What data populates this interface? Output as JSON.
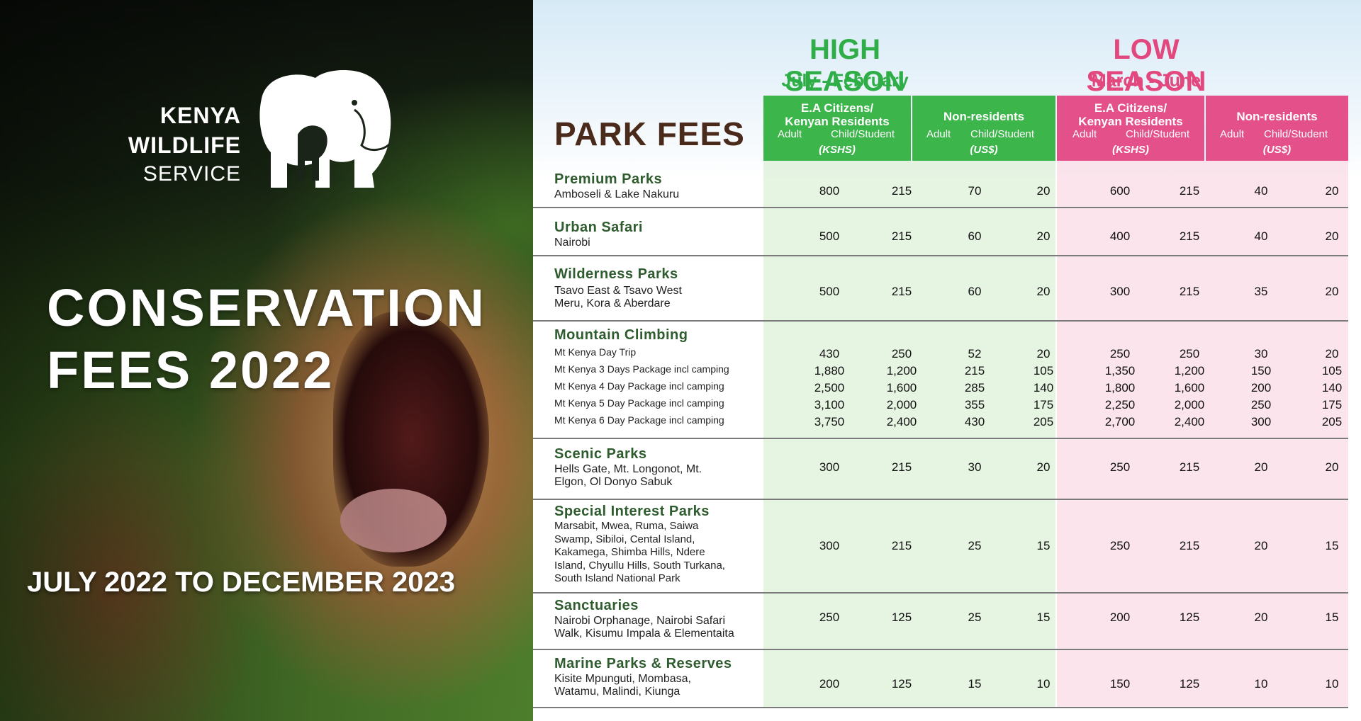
{
  "left": {
    "logo": {
      "line1": "KENYA",
      "line2": "WILDLIFE",
      "line3": "SERVICE"
    },
    "title_line1": "CONSERVATION",
    "title_line2": "FEES 2022",
    "period": "JULY 2022 TO DECEMBER 2023"
  },
  "right": {
    "park_fees": "PARK FEES",
    "high": {
      "title": "HIGH SEASON",
      "months": "July - February"
    },
    "low": {
      "title": "LOW SEASON",
      "months": "March - June"
    },
    "headers": {
      "citizens": "E.A Citizens/\nKenyan Residents",
      "nonres": "Non-residents",
      "adult": "Adult",
      "child": "Child/Student",
      "kshs": "(KSHS)",
      "uss": "(US$)"
    },
    "rows": [
      {
        "category": "Premium Parks",
        "sub": "Amboseli & Lake Nakuru",
        "values": [
          "800",
          "215",
          "70",
          "20",
          "600",
          "215",
          "40",
          "20"
        ]
      },
      {
        "category": "Urban Safari",
        "sub": "Nairobi",
        "values": [
          "500",
          "215",
          "60",
          "20",
          "400",
          "215",
          "40",
          "20"
        ]
      },
      {
        "category": "Wilderness Parks",
        "sub": "Tsavo East & Tsavo West\nMeru, Kora & Aberdare",
        "values": [
          "500",
          "215",
          "60",
          "20",
          "300",
          "215",
          "35",
          "20"
        ]
      },
      {
        "category": "Scenic Parks",
        "sub": "Hells Gate, Mt. Longonot, Mt.\nElgon, Ol Donyo Sabuk",
        "values": [
          "300",
          "215",
          "30",
          "20",
          "250",
          "215",
          "20",
          "20"
        ]
      },
      {
        "category": "Special Interest Parks",
        "sub": "Marsabit, Mwea, Ruma, Saiwa\nSwamp, Sibiloi, Cental Island,\nKakamega, Shimba Hills, Ndere\nIsland, Chyullu Hills, South Turkana,\nSouth Island National Park",
        "values": [
          "300",
          "215",
          "25",
          "15",
          "250",
          "215",
          "20",
          "15"
        ]
      },
      {
        "category": "Sanctuaries",
        "sub": "Nairobi Orphanage, Nairobi Safari\nWalk, Kisumu Impala & Elementaita",
        "values": [
          "250",
          "125",
          "25",
          "15",
          "200",
          "125",
          "20",
          "15"
        ]
      },
      {
        "category": "Marine Parks & Reserves",
        "sub": "Kisite Mpunguti, Mombasa,\nWatamu, Malindi, Kiunga",
        "values": [
          "200",
          "125",
          "15",
          "10",
          "150",
          "125",
          "10",
          "10"
        ]
      }
    ],
    "mountain": {
      "category": "Mountain Climbing",
      "items": [
        {
          "label": "Mt Kenya Day Trip",
          "values": [
            "430",
            "250",
            "52",
            "20",
            "250",
            "250",
            "30",
            "20"
          ]
        },
        {
          "label": "Mt Kenya 3 Days Package incl camping",
          "values": [
            "1,880",
            "1,200",
            "215",
            "105",
            "1,350",
            "1,200",
            "150",
            "105"
          ]
        },
        {
          "label": "Mt Kenya 4 Day Package incl camping",
          "values": [
            "2,500",
            "1,600",
            "285",
            "140",
            "1,800",
            "1,600",
            "200",
            "140"
          ]
        },
        {
          "label": "Mt Kenya 5 Day Package incl camping",
          "values": [
            "3,100",
            "2,000",
            "355",
            "175",
            "2,250",
            "2,000",
            "250",
            "175"
          ]
        },
        {
          "label": "Mt Kenya 6 Day Package incl camping",
          "values": [
            "3,750",
            "2,400",
            "430",
            "205",
            "2,700",
            "2,400",
            "300",
            "205"
          ]
        }
      ]
    }
  }
}
